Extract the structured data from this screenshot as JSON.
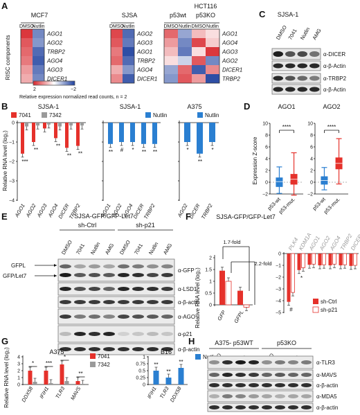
{
  "panels": {
    "A": {
      "letter": "A",
      "y_title": "RISC components",
      "note": "Relative expression normalized read counts, n = 2",
      "colorbar": {
        "min": "2",
        "max": "−2"
      },
      "blocks": [
        {
          "title": "MCF7",
          "cond": [
            "DMSO",
            "Nutlin"
          ],
          "genes": [
            "AGO1",
            "AGO2",
            "TRBP2",
            "AGO4",
            "AGO3",
            "DICER1"
          ]
        },
        {
          "title": "SJSA",
          "cond": [
            "DMSO",
            "Nutlin"
          ],
          "genes": [
            "AGO2",
            "AGO3",
            "AGO1",
            "TRBP2",
            "AGO4",
            "DICER1"
          ]
        },
        {
          "title": "HCT116",
          "sub": [
            "p53wt",
            "p53KO"
          ],
          "cond": [
            "DMSO",
            "Nutlin",
            "DMSO",
            "Nutlin"
          ],
          "genes": [
            "AGO1",
            "AGO4",
            "AGO3",
            "AGO2",
            "DICER1",
            "TRBP2"
          ]
        }
      ]
    },
    "B": {
      "letter": "B",
      "ylabel": "Relative RNA level (log₂)",
      "subplots": [
        {
          "title": "SJSA-1",
          "legend": [
            "7041",
            "7342"
          ],
          "ticks": [
            "0",
            "−1",
            "−2",
            "−3",
            "−4"
          ],
          "genes": [
            "AGO1",
            "AGO2",
            "AGO3",
            "AGO4",
            "DICER",
            "TRBP2"
          ],
          "series": [
            {
              "name": "7041",
              "values": [
                -1.6,
                -1.0,
                -0.3,
                -0.8,
                -1.3,
                -1.2
              ]
            },
            {
              "name": "7342",
              "values": [
                -0.2,
                -0.15,
                -0.1,
                -0.2,
                -0.15,
                -0.15
              ]
            }
          ],
          "stars": [
            "***",
            "**",
            "",
            "**",
            "**",
            "**"
          ]
        },
        {
          "title": "SJSA-1",
          "legend": [
            "Nutlin"
          ],
          "ticks": [],
          "genes": [
            "AGO1",
            "AGO2",
            "AGO4",
            "DICER",
            "TRBP2"
          ],
          "series": [
            {
              "name": "Nutlin",
              "values": [
                -1.1,
                -1.0,
                -1.0,
                -1.1,
                -1.1
              ]
            }
          ],
          "stars": [
            "**",
            "#",
            "*",
            "**",
            "**"
          ]
        },
        {
          "title": "A375",
          "legend": [
            "Nutlin"
          ],
          "ticks": [],
          "genes": [
            "AGO2",
            "DICER",
            "TRBP2"
          ],
          "series": [
            {
              "name": "Nutlin",
              "values": [
                -1.0,
                -1.6,
                -1.0
              ]
            }
          ],
          "stars": [
            "*",
            "**",
            "*"
          ]
        }
      ]
    },
    "C": {
      "letter": "C",
      "title": "SJSA-1",
      "lanes": [
        "DMSO",
        "7041",
        "Nutlin",
        "AMG"
      ],
      "bands": [
        "α-DICER",
        "α-β-Actin",
        "α-TRBP2",
        "α-β-Actin"
      ]
    },
    "D": {
      "letter": "D",
      "ylabel": "Expression Z-score",
      "ticks": [
        "10",
        "8",
        "6",
        "4",
        "2",
        "0",
        "−2"
      ],
      "plots": [
        {
          "title": "AGO1",
          "groups": [
            "p53-wt",
            "p53-mut."
          ],
          "median": [
            0.1,
            0.5
          ],
          "q1": [
            -0.8,
            -0.4
          ],
          "q3": [
            0.8,
            1.4
          ],
          "min": [
            -1.9,
            -2.2
          ],
          "max": [
            2.6,
            5.0
          ],
          "sig": "****"
        },
        {
          "title": "AGO2",
          "groups": [
            "p53-wt",
            "p53-mut."
          ],
          "median": [
            0.3,
            3.2
          ],
          "q1": [
            -0.4,
            2.2
          ],
          "q3": [
            1.0,
            4.2
          ],
          "min": [
            -1.3,
            -0.3
          ],
          "max": [
            2.5,
            7.4
          ],
          "sig": "****"
        }
      ]
    },
    "E": {
      "letter": "E",
      "title": "SJSA-GFP/GFP-Let7",
      "groups": [
        "sh-Ctrl",
        "sh-p21"
      ],
      "lanes": [
        "DMSO",
        "7041",
        "Nutlin",
        "AMG",
        "DMSO",
        "7041",
        "Nutlin",
        "AMG"
      ],
      "arrows": [
        "GFPL",
        "GFP/Let7"
      ],
      "bands": [
        "α-GFP",
        "α-LSD1",
        "α-β-actin",
        "α-AGO",
        "α-p21",
        "α-β-actin"
      ]
    },
    "F": {
      "letter": "F",
      "title": "SJSA-GFP/GFP-Let7",
      "ylabel": "Relative RNA level (log₂)",
      "fold": [
        "1.7-fold",
        "2.2-fold"
      ],
      "ticks_left": [
        "2",
        "1.5",
        "1",
        "0.5",
        "0"
      ],
      "ticks_right": [
        "0",
        "−1",
        "−2",
        "−3",
        "−4",
        "−5"
      ],
      "left_genes": [
        "GFP",
        "GFPL"
      ],
      "left_series": [
        {
          "name": "sh-Ctrl",
          "values": [
            1.45,
            0.6
          ]
        },
        {
          "name": "sh-p21",
          "values": [
            1.0,
            -0.1
          ]
        }
      ],
      "right_genes": [
        "PLK4",
        "KDM1A",
        "AGO1",
        "AGO2",
        "AGO4",
        "TRBP2",
        "DICER"
      ],
      "right_series": [
        {
          "name": "sh-Ctrl",
          "values": [
            -4.1,
            -1.4,
            -0.95,
            -1.0,
            -1.0,
            -1.0,
            -1.05
          ]
        },
        {
          "name": "sh-p21",
          "values": [
            -3.3,
            -1.2,
            -0.9,
            -0.95,
            -0.9,
            -0.95,
            -1.0
          ]
        }
      ],
      "right_stars": [
        "#",
        "*",
        "",
        "",
        "",
        "",
        ""
      ],
      "legend": [
        "sh-Ctrl",
        "sh-p21"
      ]
    },
    "G": {
      "letter": "G",
      "ylabel": "Relative RNA level (log₂)",
      "subplots": [
        {
          "title": "A375",
          "legend": [
            "7041",
            "7342"
          ],
          "ticks": [
            "4",
            "3",
            "2",
            "1",
            "0"
          ],
          "genes": [
            "DDX58",
            "IFIH1",
            "TLR3",
            "MAVS"
          ],
          "series": [
            {
              "name": "7041",
              "values": [
                2.0,
                2.0,
                2.9,
                0.5
              ]
            },
            {
              "name": "7342",
              "values": [
                0.4,
                0.2,
                0.5,
                0.1
              ]
            }
          ],
          "stars": [
            "*",
            "***",
            "*",
            "**"
          ]
        },
        {
          "title": "B16",
          "legend": [
            "Nutlin"
          ],
          "ticks": [
            "1",
            "0.75",
            "0.5",
            "0.25",
            "0"
          ],
          "genes": [
            "IFIH1",
            "TLR3",
            "DDX58"
          ],
          "series": [
            {
              "name": "Nutlin",
              "values": [
                0.5,
                0.25,
                0.6
              ]
            }
          ],
          "stars": [
            "**",
            "**",
            "**"
          ]
        }
      ]
    },
    "H": {
      "letter": "H",
      "groups": [
        "A375- p53WT",
        "p53KO"
      ],
      "lanes": [
        "DMSO",
        "7041",
        "Nutlin",
        "AMG",
        "DMSO",
        "7041",
        "Nutlin",
        "AMG"
      ],
      "bands": [
        "α-TLR3",
        "α-MAVS",
        "α-β-actin",
        "α-MDA5",
        "α-β-actin"
      ]
    }
  },
  "colors": {
    "red": "#e5312b",
    "gray": "#9a9a9a",
    "blue": "#2a7fd1",
    "heat_high": "#d8262c",
    "heat_low": "#1d3f9e"
  },
  "heatmap_values": {
    "MCF7": [
      [
        1.2,
        -0.8
      ],
      [
        1.0,
        -0.7
      ],
      [
        0.9,
        -1.0
      ],
      [
        0.8,
        -1.1
      ],
      [
        0.6,
        -0.9
      ],
      [
        0.5,
        -0.8
      ]
    ],
    "SJSA": [
      [
        1.1,
        -1.0
      ],
      [
        1.0,
        -0.9
      ],
      [
        0.8,
        -1.2
      ],
      [
        0.9,
        -1.0
      ],
      [
        0.5,
        -0.7
      ],
      [
        0.7,
        -1.1
      ]
    ],
    "HCT116": [
      [
        0.9,
        -0.6,
        0.4,
        0.2
      ],
      [
        0.6,
        -0.8,
        1.1,
        0.3
      ],
      [
        0.4,
        -0.9,
        0.2,
        1.2
      ],
      [
        0.2,
        -0.3,
        1.0,
        -0.8
      ],
      [
        -0.6,
        0.9,
        -1.1,
        0.7
      ],
      [
        -0.7,
        1.0,
        0.6,
        -1.2
      ]
    ]
  }
}
